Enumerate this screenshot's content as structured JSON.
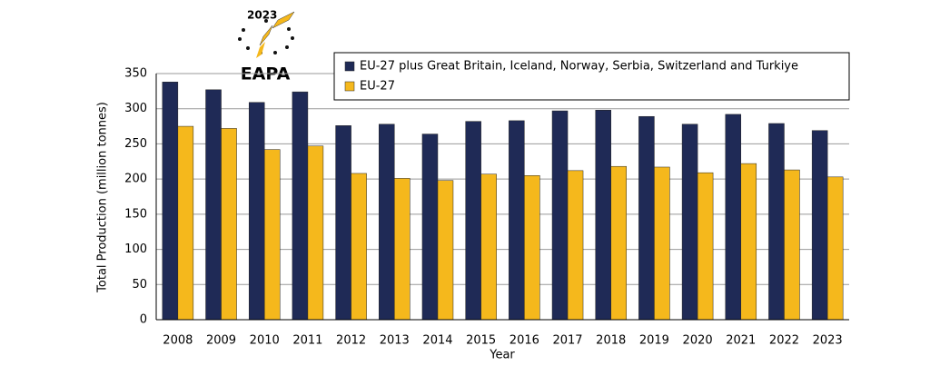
{
  "logo": {
    "year": "2023",
    "name": "EAPA"
  },
  "chart_data": {
    "type": "bar",
    "x_label": "Year",
    "y_label": "Total Production (million tonnes)",
    "categories": [
      "2008",
      "2009",
      "2010",
      "2011",
      "2012",
      "2013",
      "2014",
      "2015",
      "2016",
      "2017",
      "2018",
      "2019",
      "2020",
      "2021",
      "2022",
      "2023"
    ],
    "series": [
      {
        "name": "EU-27 plus Great Britain, Iceland, Norway, Serbia, Switzerland and Turkiye",
        "color": "#1f2a56",
        "values": [
          338,
          327,
          309,
          324,
          276,
          278,
          264,
          282,
          283,
          297,
          298,
          289,
          278,
          292,
          279,
          269
        ]
      },
      {
        "name": "EU-27",
        "color": "#f5b81c",
        "values": [
          275,
          272,
          242,
          247,
          208,
          201,
          198,
          207,
          205,
          212,
          218,
          217,
          209,
          222,
          213,
          203
        ]
      }
    ],
    "ylim": [
      0,
      350
    ],
    "yticks": [
      0,
      50,
      100,
      150,
      200,
      250,
      300,
      350
    ],
    "grid": true,
    "legend": "top-right"
  }
}
